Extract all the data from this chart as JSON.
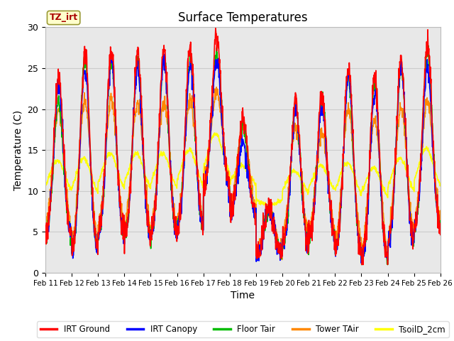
{
  "title": "Surface Temperatures",
  "xlabel": "Time",
  "ylabel": "Temperature (C)",
  "ylim": [
    0,
    30
  ],
  "yticks": [
    0,
    5,
    10,
    15,
    20,
    25,
    30
  ],
  "x_tick_labels": [
    "Feb 11",
    "Feb 12",
    "Feb 13",
    "Feb 14",
    "Feb 15",
    "Feb 16",
    "Feb 17",
    "Feb 18",
    "Feb 19",
    "Feb 20",
    "Feb 21",
    "Feb 22",
    "Feb 23",
    "Feb 24",
    "Feb 25",
    "Feb 26"
  ],
  "legend_entries": [
    "IRT Ground",
    "IRT Canopy",
    "Floor Tair",
    "Tower TAir",
    "TsoilD_2cm"
  ],
  "legend_colors": [
    "#ff0000",
    "#0000ff",
    "#00bb00",
    "#ff8800",
    "#ffff00"
  ],
  "annotation_text": "TZ_irt",
  "annotation_color": "#aa0000",
  "annotation_bg": "#ffffcc",
  "plot_bg": "#e8e8e8",
  "line_width": 1.2,
  "n_days": 15,
  "pts_per_day": 96,
  "day_peaks_ground": [
    24,
    27,
    27,
    27,
    27,
    27.5,
    29,
    19,
    8,
    21,
    22,
    25,
    24,
    26,
    28
  ],
  "day_troughs_ground": [
    4,
    2,
    4,
    4,
    4,
    5,
    10,
    7,
    2,
    3,
    4,
    2,
    1,
    3,
    5
  ],
  "day_peaks_canopy": [
    23,
    25,
    26,
    25,
    26,
    25.5,
    26,
    16,
    8,
    20,
    20,
    24,
    22,
    25,
    25
  ],
  "day_peaks_floor": [
    21,
    26,
    26,
    26,
    26,
    26,
    27,
    18,
    8,
    20,
    21,
    24,
    23,
    25,
    27
  ],
  "day_peaks_tower": [
    20,
    21,
    21,
    21,
    21,
    21,
    22,
    18,
    8,
    18,
    17,
    20,
    19,
    20,
    21
  ],
  "tsoil_base": 12,
  "tsoil_amp": 5
}
